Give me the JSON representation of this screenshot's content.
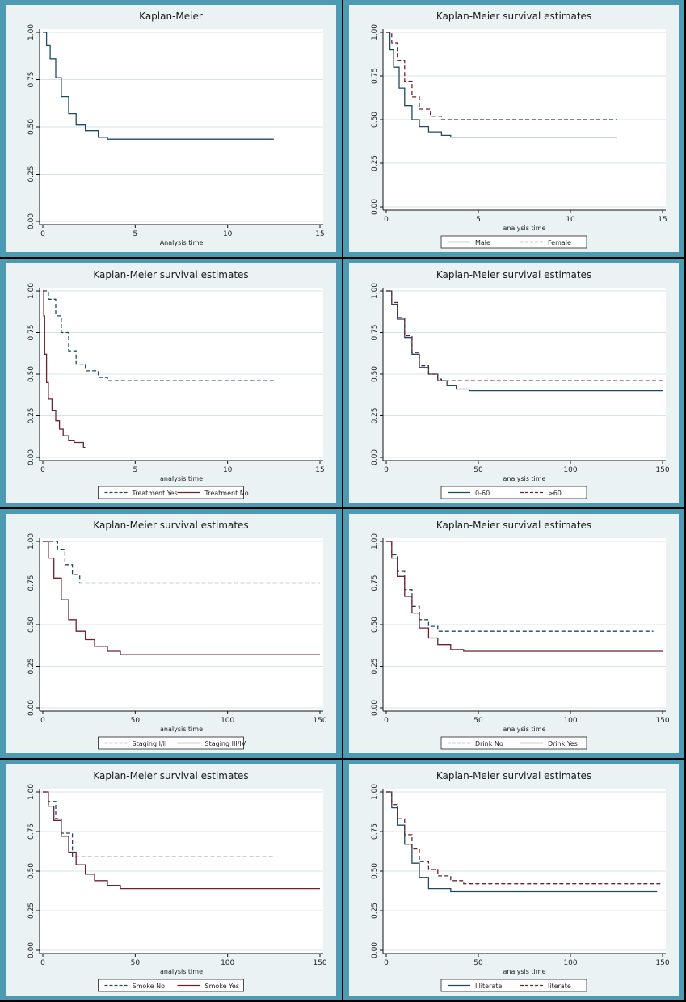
{
  "colors": {
    "frame": "#4d9bb2",
    "background": "#eaf2f3",
    "grid": "#d6e4e8",
    "axis": "#111111",
    "blue": "#1e4a62",
    "red": "#6e2230",
    "darkblue": "#26435c"
  },
  "chart_data": [
    {
      "type": "line",
      "title": "Kaplan-Meier",
      "xlabel": "Analysis time",
      "ylabel": "",
      "xlim": [
        0,
        15
      ],
      "ylim": [
        0,
        1
      ],
      "xticks": [
        0,
        5,
        10,
        15
      ],
      "yticks": [
        "0.00",
        "0.25",
        "0.50",
        "0.75",
        "1.00"
      ],
      "grid": true,
      "legend": [],
      "series": [
        {
          "style": "solid",
          "color": "#1e4a62",
          "x": [
            0,
            0.2,
            0.4,
            0.7,
            1.0,
            1.4,
            1.8,
            2.3,
            3.0,
            3.5,
            12.5
          ],
          "y": [
            1.0,
            0.93,
            0.86,
            0.76,
            0.66,
            0.57,
            0.51,
            0.48,
            0.445,
            0.435,
            0.435
          ]
        }
      ]
    },
    {
      "type": "line",
      "title": "Kaplan-Meier survival estimates",
      "xlabel": "analysis time",
      "ylabel": "",
      "xlim": [
        0,
        15
      ],
      "ylim": [
        0,
        1
      ],
      "xticks": [
        0,
        5,
        10,
        15
      ],
      "yticks": [
        "0.00",
        "0.25",
        "0.50",
        "0.75",
        "1.00"
      ],
      "grid": true,
      "legend": [
        "Male",
        "Female"
      ],
      "series": [
        {
          "name": "Male",
          "style": "solid",
          "color": "#1e4a62",
          "x": [
            0,
            0.2,
            0.4,
            0.7,
            1.0,
            1.4,
            1.8,
            2.3,
            3.0,
            3.5,
            12.5
          ],
          "y": [
            1.0,
            0.9,
            0.8,
            0.68,
            0.58,
            0.5,
            0.46,
            0.43,
            0.41,
            0.4,
            0.4
          ]
        },
        {
          "name": "Female",
          "style": "dashed",
          "color": "#6e2230",
          "x": [
            0,
            0.3,
            0.6,
            1.0,
            1.4,
            1.8,
            2.4,
            3.0,
            12.5
          ],
          "y": [
            1.0,
            0.94,
            0.84,
            0.72,
            0.63,
            0.56,
            0.52,
            0.5,
            0.5
          ]
        }
      ]
    },
    {
      "type": "line",
      "title": "Kaplan-Meier survival estimates",
      "xlabel": "analysis time",
      "ylabel": "",
      "xlim": [
        0,
        15
      ],
      "ylim": [
        0,
        1
      ],
      "xticks": [
        0,
        5,
        10,
        15
      ],
      "yticks": [
        "0.00",
        "0.25",
        "0.50",
        "0.75",
        "1.00"
      ],
      "grid": true,
      "legend": [
        "Treatment Yes",
        "Treatment No"
      ],
      "series": [
        {
          "name": "Treatment Yes",
          "style": "dashed",
          "color": "#1e4a62",
          "x": [
            0,
            0.3,
            0.7,
            1.0,
            1.4,
            1.8,
            2.3,
            3.0,
            3.5,
            12.5
          ],
          "y": [
            1.0,
            0.95,
            0.85,
            0.75,
            0.64,
            0.56,
            0.52,
            0.48,
            0.46,
            0.46
          ]
        },
        {
          "name": "Treatment No",
          "style": "solid",
          "color": "#6e2230",
          "x": [
            0,
            0.05,
            0.1,
            0.2,
            0.3,
            0.5,
            0.7,
            0.9,
            1.1,
            1.4,
            1.7,
            2.2,
            2.3
          ],
          "y": [
            1.0,
            0.85,
            0.62,
            0.45,
            0.35,
            0.28,
            0.22,
            0.17,
            0.13,
            0.1,
            0.09,
            0.06,
            0.06
          ]
        }
      ]
    },
    {
      "type": "line",
      "title": "Kaplan-Meier survival estimates",
      "xlabel": "analysis time",
      "ylabel": "",
      "xlim": [
        0,
        150
      ],
      "ylim": [
        0,
        1
      ],
      "xticks": [
        0,
        50,
        100,
        150
      ],
      "yticks": [
        "0.00",
        "0.25",
        "0.50",
        "0.75",
        "1.00"
      ],
      "grid": true,
      "legend": [
        "0-60",
        ">60"
      ],
      "series": [
        {
          "name": "0-60",
          "style": "solid",
          "color": "#1e4a62",
          "x": [
            0,
            3,
            6,
            10,
            14,
            18,
            23,
            28,
            33,
            38,
            45,
            150
          ],
          "y": [
            1.0,
            0.92,
            0.83,
            0.72,
            0.62,
            0.54,
            0.5,
            0.46,
            0.43,
            0.41,
            0.4,
            0.4
          ]
        },
        {
          "name": ">60",
          "style": "dashed",
          "color": "#6e2230",
          "x": [
            0,
            3,
            6,
            10,
            14,
            18,
            23,
            28,
            30,
            150
          ],
          "y": [
            1.0,
            0.93,
            0.84,
            0.73,
            0.63,
            0.55,
            0.5,
            0.47,
            0.46,
            0.46
          ]
        }
      ]
    },
    {
      "type": "line",
      "title": "Kaplan-Meier survival estimates",
      "xlabel": "analysis time",
      "ylabel": "",
      "xlim": [
        0,
        150
      ],
      "ylim": [
        0,
        1
      ],
      "xticks": [
        0,
        50,
        100,
        150
      ],
      "yticks": [
        "0.00",
        "0.25",
        "0.50",
        "0.75",
        "1.00"
      ],
      "grid": true,
      "legend": [
        "Staging I/II",
        "Staging III/IV"
      ],
      "series": [
        {
          "name": "Staging I/II",
          "style": "dashed",
          "color": "#1e4a62",
          "x": [
            0,
            8,
            12,
            16,
            20,
            150
          ],
          "y": [
            1.0,
            0.95,
            0.86,
            0.8,
            0.75,
            0.75
          ]
        },
        {
          "name": "Staging III/IV",
          "style": "solid",
          "color": "#6e2230",
          "x": [
            0,
            3,
            6,
            10,
            14,
            18,
            23,
            28,
            35,
            42,
            150
          ],
          "y": [
            1.0,
            0.9,
            0.78,
            0.65,
            0.53,
            0.46,
            0.41,
            0.37,
            0.34,
            0.32,
            0.32
          ]
        }
      ]
    },
    {
      "type": "line",
      "title": "Kaplan-Meier survival estimates",
      "xlabel": "analysis time",
      "ylabel": "",
      "xlim": [
        0,
        150
      ],
      "ylim": [
        0,
        1
      ],
      "xticks": [
        0,
        50,
        100,
        150
      ],
      "yticks": [
        "0.00",
        "0.25",
        "0.50",
        "0.75",
        "1.00"
      ],
      "grid": true,
      "legend": [
        "Drink No",
        "Drink Yes"
      ],
      "series": [
        {
          "name": "Drink No",
          "style": "dashed",
          "color": "#1e4a62",
          "x": [
            0,
            3,
            6,
            10,
            14,
            18,
            23,
            28,
            145
          ],
          "y": [
            1.0,
            0.92,
            0.82,
            0.71,
            0.61,
            0.53,
            0.49,
            0.46,
            0.46
          ]
        },
        {
          "name": "Drink Yes",
          "style": "solid",
          "color": "#6e2230",
          "x": [
            0,
            3,
            6,
            10,
            14,
            18,
            23,
            28,
            35,
            42,
            150
          ],
          "y": [
            1.0,
            0.9,
            0.79,
            0.67,
            0.57,
            0.48,
            0.42,
            0.38,
            0.35,
            0.34,
            0.34
          ]
        }
      ]
    },
    {
      "type": "line",
      "title": "Kaplan-Meier survival estimates",
      "xlabel": "analysis time",
      "ylabel": "",
      "xlim": [
        0,
        150
      ],
      "ylim": [
        0,
        1
      ],
      "xticks": [
        0,
        50,
        100,
        150
      ],
      "yticks": [
        "0.00",
        "0.25",
        "0.50",
        "0.75",
        "1.00"
      ],
      "grid": true,
      "legend": [
        "Smoke No",
        "Smoke Yes"
      ],
      "series": [
        {
          "name": "Smoke No",
          "style": "dashed",
          "color": "#1e4a62",
          "x": [
            0,
            3,
            7,
            10,
            16,
            125
          ],
          "y": [
            1.0,
            0.94,
            0.83,
            0.74,
            0.59,
            0.59
          ]
        },
        {
          "name": "Smoke Yes",
          "style": "solid",
          "color": "#6e2230",
          "x": [
            0,
            3,
            6,
            10,
            14,
            18,
            23,
            28,
            35,
            42,
            150
          ],
          "y": [
            1.0,
            0.91,
            0.82,
            0.72,
            0.62,
            0.54,
            0.48,
            0.44,
            0.41,
            0.39,
            0.39
          ]
        }
      ]
    },
    {
      "type": "line",
      "title": "Kaplan-Meier survival estimates",
      "xlabel": "analysis time",
      "ylabel": "",
      "xlim": [
        0,
        150
      ],
      "ylim": [
        0,
        1
      ],
      "xticks": [
        0,
        50,
        100,
        150
      ],
      "yticks": [
        "0.00",
        "0.25",
        "0.50",
        "0.75",
        "1.00"
      ],
      "grid": true,
      "legend": [
        "Illiterate",
        "literate"
      ],
      "series": [
        {
          "name": "Illiterate",
          "style": "solid",
          "color": "#1e4a62",
          "x": [
            0,
            3,
            6,
            10,
            14,
            18,
            23,
            35,
            147
          ],
          "y": [
            1.0,
            0.9,
            0.79,
            0.67,
            0.55,
            0.46,
            0.39,
            0.37,
            0.37
          ]
        },
        {
          "name": "literate",
          "style": "dashed",
          "color": "#6e2230",
          "x": [
            0,
            3,
            6,
            10,
            14,
            18,
            23,
            28,
            35,
            42,
            150
          ],
          "y": [
            1.0,
            0.92,
            0.83,
            0.73,
            0.64,
            0.56,
            0.51,
            0.47,
            0.44,
            0.42,
            0.42
          ]
        }
      ]
    }
  ]
}
